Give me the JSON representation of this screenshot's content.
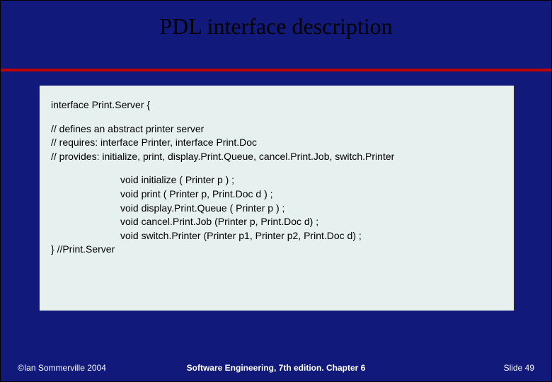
{
  "colors": {
    "slide_bg": "#111a7a",
    "rule": "#c00000",
    "code_bg": "#e6f0ef",
    "title_color": "#000000",
    "footer_color": "#ffffff"
  },
  "title": "PDL interface description",
  "code": {
    "line1": "interface Print.Server {",
    "c1": "// defines an abstract printer server",
    "c2": "// requires:            interface Printer, interface Print.Doc",
    "c3": "// provides: initialize, print, display.Print.Queue, cancel.Print.Job, switch.Printer",
    "d1": "void initialize ( Printer p ) ;",
    "d2": "void print ( Printer p, Print.Doc d ) ;",
    "d3": "void display.Print.Queue ( Printer p ) ;",
    "d4": "void cancel.Print.Job (Printer p, Print.Doc d) ;",
    "d5": "void switch.Printer (Printer p1, Printer p2, Print.Doc d) ;",
    "close": "} //Print.Server"
  },
  "footer": {
    "left": "©Ian Sommerville 2004",
    "center": "Software Engineering, 7th edition. Chapter 6",
    "right": "Slide  49"
  }
}
